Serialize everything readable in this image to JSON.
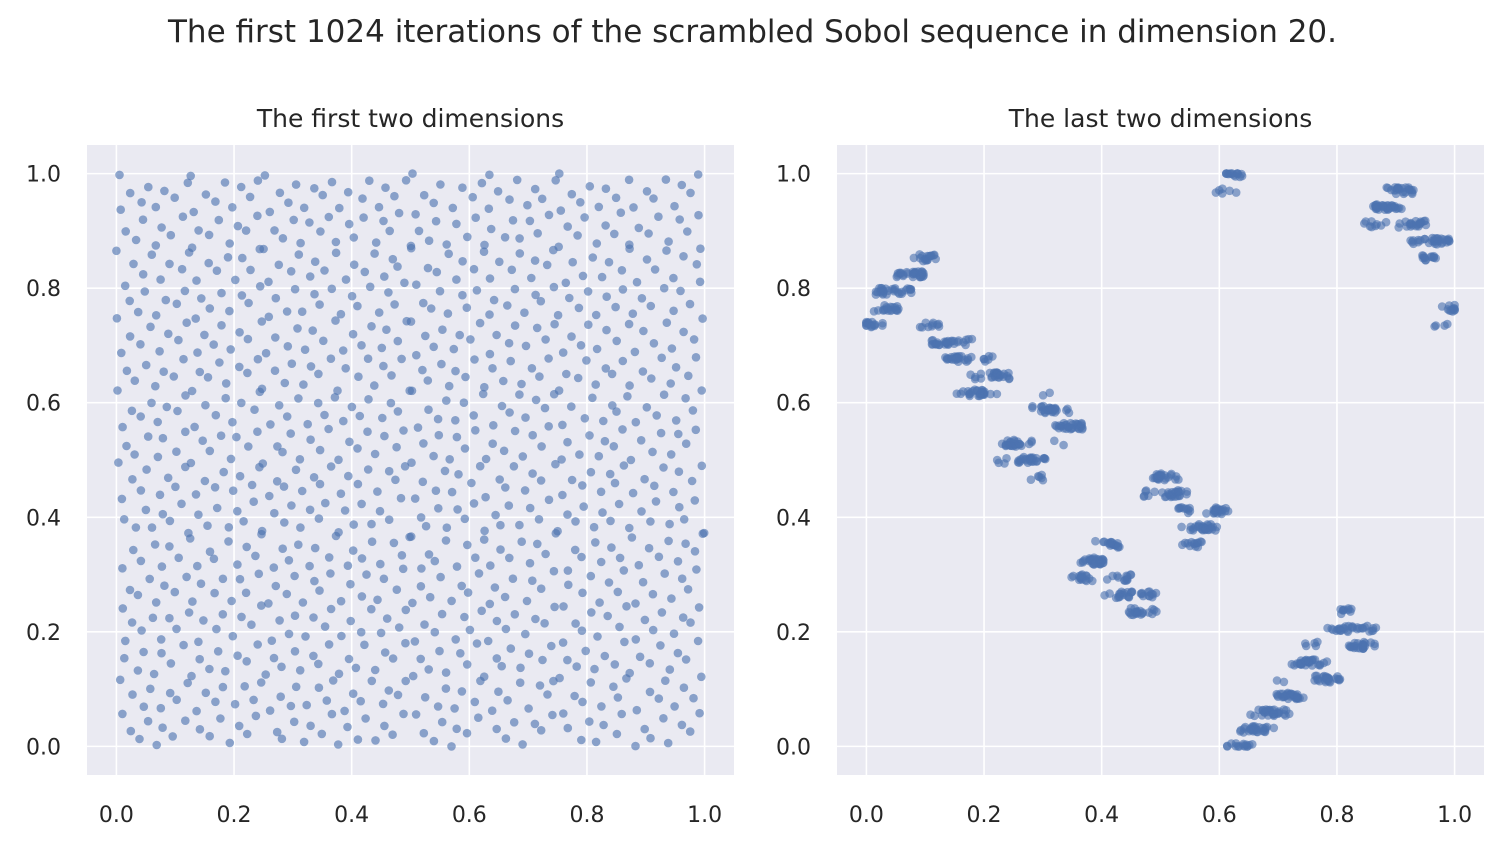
{
  "title": "The first 1024 iterations of the scrambled Sobol sequence in dimension 20.",
  "colors": {
    "point": "#4c72b0",
    "axes_bg": "#eaeaf2",
    "grid": "#ffffff"
  },
  "chart_data": [
    {
      "type": "scatter",
      "title": "The first two dimensions",
      "xlim": [
        -0.05,
        1.05
      ],
      "ylim": [
        -0.05,
        1.05
      ],
      "xticks": [
        "0.0",
        "0.2",
        "0.4",
        "0.6",
        "0.8",
        "1.0"
      ],
      "yticks": [
        "0.0",
        "0.2",
        "0.4",
        "0.6",
        "0.8",
        "1.0"
      ],
      "grid": true,
      "n_points": 1024,
      "points_note_x": [
        0.03,
        0.52,
        0.27,
        0.78,
        0.15,
        0.64,
        0.4,
        0.9,
        0.09,
        0.58,
        0.33,
        0.84,
        0.21,
        0.7,
        0.46,
        0.96
      ],
      "points_note_y": [
        0.0,
        0.5,
        0.75,
        0.25,
        0.37,
        0.87,
        0.62,
        0.12,
        0.18,
        0.68,
        0.93,
        0.43,
        0.31,
        0.81,
        0.56,
        0.06
      ]
    },
    {
      "type": "scatter",
      "title": "The last two dimensions",
      "xlim": [
        -0.05,
        1.05
      ],
      "ylim": [
        -0.05,
        1.05
      ],
      "xticks": [
        "0.0",
        "0.2",
        "0.4",
        "0.6",
        "0.8",
        "1.0"
      ],
      "yticks": [
        "0.0",
        "0.2",
        "0.4",
        "0.6",
        "0.8",
        "1.0"
      ],
      "grid": true,
      "n_points": 1024,
      "points_note_x": [
        0.01,
        0.44,
        0.23,
        0.66,
        0.12,
        0.55,
        0.34,
        0.77,
        0.06,
        0.49,
        0.28,
        0.71,
        0.17,
        0.6,
        0.39,
        0.82
      ],
      "points_note_y": [
        0.21,
        0.83,
        0.52,
        0.05,
        0.37,
        0.98,
        0.68,
        0.14,
        0.29,
        0.91,
        0.6,
        0.45,
        0.76,
        0.09,
        0.33,
        0.57
      ]
    }
  ]
}
